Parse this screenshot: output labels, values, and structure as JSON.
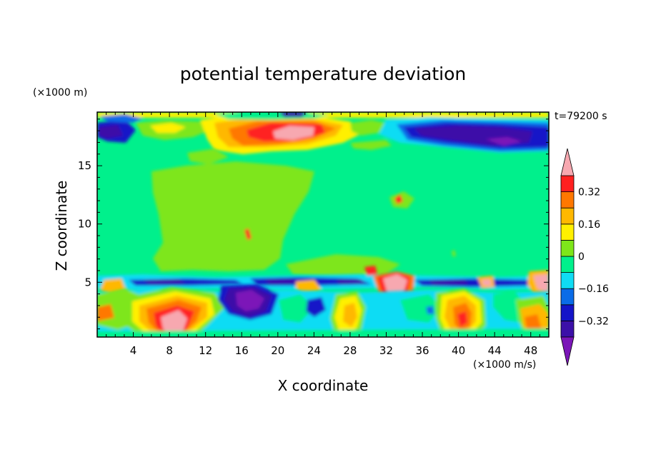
{
  "chart_data": {
    "type": "heatmap",
    "title": "potential temperature deviation",
    "xlabel": "X coordinate",
    "ylabel": "Z coordinate",
    "x_unit": "(×1000 m/s)",
    "y_unit": "(×1000 m)",
    "time_label": "t=79200 s",
    "xlim": [
      0,
      50
    ],
    "ylim": [
      0.3,
      19.6
    ],
    "x_ticks": [
      4,
      8,
      12,
      16,
      20,
      24,
      28,
      32,
      36,
      40,
      44,
      48
    ],
    "y_ticks": [
      5,
      10,
      15
    ],
    "colorbar": {
      "levels": [
        -0.48,
        -0.4,
        -0.32,
        -0.24,
        -0.16,
        -0.08,
        0,
        0.08,
        0.16,
        0.24,
        0.32,
        0.4
      ],
      "labels": [
        "0.32",
        "0.16",
        "0",
        "−0.16",
        "−0.32"
      ],
      "label_values": [
        0.32,
        0.16,
        0,
        -0.16,
        -0.32
      ],
      "colors": [
        "#7b16b8",
        "#3c10a8",
        "#1414c8",
        "#0a6ce8",
        "#10dcf4",
        "#00f08c",
        "#7ee61a",
        "#fff000",
        "#ffb800",
        "#ff7800",
        "#ff2020",
        "#f7a8b0"
      ]
    },
    "features": [
      {
        "region": "upper band",
        "z_range": [
          16.5,
          19.6
        ],
        "description": "warm anomalies (to >0.4) near x=18–24, cold anomalies (<-0.32) near x=36–48"
      },
      {
        "region": "mid layer",
        "z_range": [
          5.5,
          16.5
        ],
        "description": "near-zero (0 to 0.08) broad region x=5–20, otherwise -0.08 to 0"
      },
      {
        "region": "interface",
        "z_range": [
          4.5,
          5.5
        ],
        "description": "thin cold band (<-0.32) with warm cores at x≈33, 43, 49"
      },
      {
        "region": "lower layer",
        "z_range": [
          0.3,
          4.5
        ],
        "description": "mixed structure; warm core (>0.4) near x=8–10, z<3"
      }
    ]
  }
}
